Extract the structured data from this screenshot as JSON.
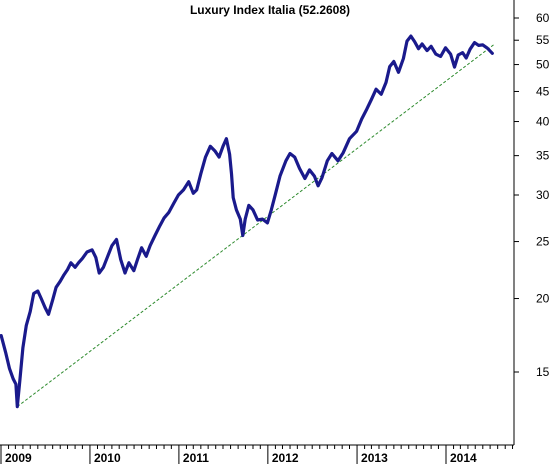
{
  "chart_data": {
    "type": "line",
    "title": "Luxury Index Italia (52.2608)",
    "y_scale": "log",
    "ylim": [
      12.5,
      64
    ],
    "y_ticks": [
      15,
      20,
      25,
      30,
      35,
      40,
      45,
      50,
      55,
      60
    ],
    "x_ticks": [
      "2009",
      "2010",
      "2011",
      "2012",
      "2013",
      "2014"
    ],
    "x_range": [
      "2009-01-01",
      "2014-07-15"
    ],
    "grid": false,
    "colors": {
      "series": "#1a1a8c",
      "trendline": "#2e8b2e"
    },
    "series": [
      {
        "points": [
          [
            "2009-01-02",
            17.3
          ],
          [
            "2009-01-20",
            16.2
          ],
          [
            "2009-02-05",
            15.2
          ],
          [
            "2009-02-20",
            14.6
          ],
          [
            "2009-03-03",
            14.3
          ],
          [
            "2009-03-09",
            13.1
          ],
          [
            "2009-03-20",
            14.6
          ],
          [
            "2009-04-01",
            16.5
          ],
          [
            "2009-04-15",
            18.0
          ],
          [
            "2009-05-01",
            19.0
          ],
          [
            "2009-05-15",
            20.4
          ],
          [
            "2009-06-01",
            20.6
          ],
          [
            "2009-06-15",
            20.0
          ],
          [
            "2009-07-01",
            19.3
          ],
          [
            "2009-07-15",
            18.8
          ],
          [
            "2009-08-01",
            19.9
          ],
          [
            "2009-08-15",
            20.9
          ],
          [
            "2009-09-01",
            21.4
          ],
          [
            "2009-09-15",
            21.9
          ],
          [
            "2009-10-01",
            22.4
          ],
          [
            "2009-10-15",
            23.0
          ],
          [
            "2009-11-01",
            22.6
          ],
          [
            "2009-11-15",
            23.0
          ],
          [
            "2009-12-01",
            23.4
          ],
          [
            "2009-12-20",
            24.0
          ],
          [
            "2010-01-10",
            24.2
          ],
          [
            "2010-01-25",
            23.5
          ],
          [
            "2010-02-08",
            22.1
          ],
          [
            "2010-02-25",
            22.6
          ],
          [
            "2010-03-15",
            23.6
          ],
          [
            "2010-04-01",
            24.6
          ],
          [
            "2010-04-20",
            25.2
          ],
          [
            "2010-05-07",
            23.3
          ],
          [
            "2010-05-25",
            22.1
          ],
          [
            "2010-06-10",
            23.0
          ],
          [
            "2010-06-30",
            22.3
          ],
          [
            "2010-07-15",
            23.3
          ],
          [
            "2010-08-01",
            24.4
          ],
          [
            "2010-08-20",
            23.6
          ],
          [
            "2010-09-05",
            24.6
          ],
          [
            "2010-09-25",
            25.6
          ],
          [
            "2010-10-15",
            26.6
          ],
          [
            "2010-11-01",
            27.4
          ],
          [
            "2010-11-20",
            28.0
          ],
          [
            "2010-12-10",
            29.0
          ],
          [
            "2010-12-30",
            30.0
          ],
          [
            "2011-01-20",
            30.6
          ],
          [
            "2011-02-10",
            31.6
          ],
          [
            "2011-03-01",
            30.2
          ],
          [
            "2011-03-15",
            30.6
          ],
          [
            "2011-04-01",
            32.6
          ],
          [
            "2011-04-20",
            34.8
          ],
          [
            "2011-05-10",
            36.3
          ],
          [
            "2011-05-30",
            35.6
          ],
          [
            "2011-06-15",
            34.8
          ],
          [
            "2011-07-01",
            36.3
          ],
          [
            "2011-07-15",
            37.4
          ],
          [
            "2011-07-28",
            35.2
          ],
          [
            "2011-08-05",
            32.6
          ],
          [
            "2011-08-12",
            29.7
          ],
          [
            "2011-08-25",
            28.3
          ],
          [
            "2011-09-10",
            27.3
          ],
          [
            "2011-09-20",
            25.6
          ],
          [
            "2011-09-30",
            27.3
          ],
          [
            "2011-10-15",
            28.8
          ],
          [
            "2011-11-01",
            28.3
          ],
          [
            "2011-11-20",
            27.2
          ],
          [
            "2011-12-10",
            27.3
          ],
          [
            "2011-12-30",
            26.9
          ],
          [
            "2012-01-15",
            28.3
          ],
          [
            "2012-02-01",
            30.1
          ],
          [
            "2012-02-20",
            32.3
          ],
          [
            "2012-03-15",
            34.3
          ],
          [
            "2012-04-01",
            35.3
          ],
          [
            "2012-04-20",
            34.8
          ],
          [
            "2012-05-10",
            33.3
          ],
          [
            "2012-06-01",
            32.0
          ],
          [
            "2012-06-20",
            33.1
          ],
          [
            "2012-07-10",
            32.3
          ],
          [
            "2012-07-25",
            31.1
          ],
          [
            "2012-08-10",
            32.1
          ],
          [
            "2012-09-01",
            34.3
          ],
          [
            "2012-09-20",
            35.3
          ],
          [
            "2012-10-15",
            34.3
          ],
          [
            "2012-11-05",
            35.4
          ],
          [
            "2012-12-01",
            37.4
          ],
          [
            "2012-12-30",
            38.5
          ],
          [
            "2013-01-20",
            40.4
          ],
          [
            "2013-02-10",
            42.0
          ],
          [
            "2013-03-01",
            43.6
          ],
          [
            "2013-03-20",
            45.4
          ],
          [
            "2013-04-10",
            44.5
          ],
          [
            "2013-04-30",
            46.6
          ],
          [
            "2013-05-15",
            49.6
          ],
          [
            "2013-06-01",
            50.6
          ],
          [
            "2013-06-20",
            48.5
          ],
          [
            "2013-07-10",
            51.2
          ],
          [
            "2013-07-25",
            54.8
          ],
          [
            "2013-08-10",
            55.9
          ],
          [
            "2013-08-25",
            54.7
          ],
          [
            "2013-09-10",
            53.2
          ],
          [
            "2013-09-25",
            54.2
          ],
          [
            "2013-10-15",
            52.8
          ],
          [
            "2013-11-01",
            53.7
          ],
          [
            "2013-11-20",
            52.1
          ],
          [
            "2013-12-10",
            51.6
          ],
          [
            "2013-12-30",
            53.4
          ],
          [
            "2014-01-20",
            52.1
          ],
          [
            "2014-02-05",
            49.5
          ],
          [
            "2014-02-20",
            51.9
          ],
          [
            "2014-03-10",
            52.4
          ],
          [
            "2014-03-25",
            51.3
          ],
          [
            "2014-04-10",
            53.1
          ],
          [
            "2014-04-28",
            54.5
          ],
          [
            "2014-05-15",
            53.9
          ],
          [
            "2014-06-01",
            54.0
          ],
          [
            "2014-06-20",
            53.3
          ],
          [
            "2014-07-10",
            52.26
          ]
        ]
      }
    ],
    "trendline": {
      "start": [
        "2009-03-09",
        13.1
      ],
      "end": [
        "2014-07-15",
        54.0
      ]
    }
  }
}
